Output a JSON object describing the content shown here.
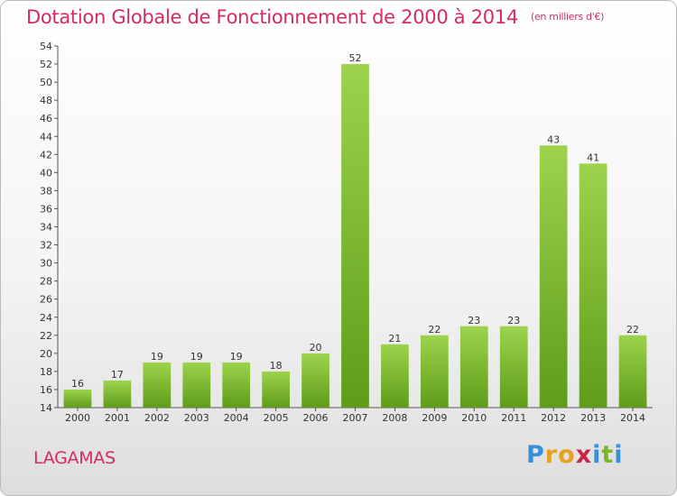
{
  "header": {
    "title": "Dotation Globale de Fonctionnement de 2000 à 2014",
    "subtitle": "(en milliers d'€)"
  },
  "commune": "LAGAMAS",
  "logo": {
    "letters": [
      {
        "char": "P",
        "color": "#3a8fd6"
      },
      {
        "char": "r",
        "color": "#e8a020"
      },
      {
        "char": "o",
        "color": "#e8a020"
      },
      {
        "char": "x",
        "color": "#cc2244"
      },
      {
        "char": "i",
        "color": "#3a8fd6"
      },
      {
        "char": "t",
        "color": "#7ab828"
      },
      {
        "char": "i",
        "color": "#3a8fd6"
      }
    ]
  },
  "chart_data": {
    "type": "bar",
    "title": "Dotation Globale de Fonctionnement de 2000 à 2014",
    "subtitle": "(en milliers d'€)",
    "categories": [
      "2000",
      "2001",
      "2002",
      "2003",
      "2004",
      "2005",
      "2006",
      "2007",
      "2008",
      "2009",
      "2010",
      "2011",
      "2012",
      "2013",
      "2014"
    ],
    "values": [
      16,
      17,
      19,
      19,
      19,
      18,
      20,
      52,
      21,
      22,
      23,
      23,
      43,
      41,
      22
    ],
    "ylim": [
      14,
      54
    ],
    "ytick_step": 2,
    "grid": false,
    "bar_color": "#74b52b",
    "xlabel": "",
    "ylabel": ""
  }
}
